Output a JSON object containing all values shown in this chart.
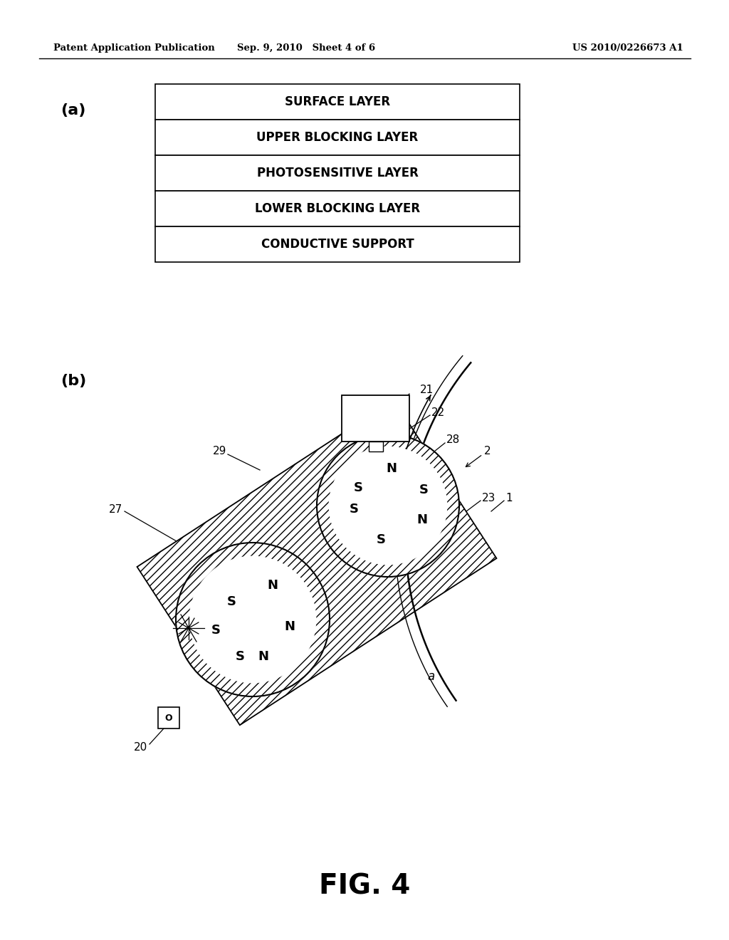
{
  "bg_color": "#ffffff",
  "header_left": "Patent Application Publication",
  "header_mid": "Sep. 9, 2010   Sheet 4 of 6",
  "header_right": "US 2010/0226673 A1",
  "fig_label_a": "(a)",
  "fig_label_b": "(b)",
  "fig_caption": "FIG. 4",
  "layers": [
    "SURFACE LAYER",
    "UPPER BLOCKING LAYER",
    "PHOTOSENSITIVE LAYER",
    "LOWER BLOCKING LAYER",
    "CONDUCTIVE SUPPORT"
  ]
}
